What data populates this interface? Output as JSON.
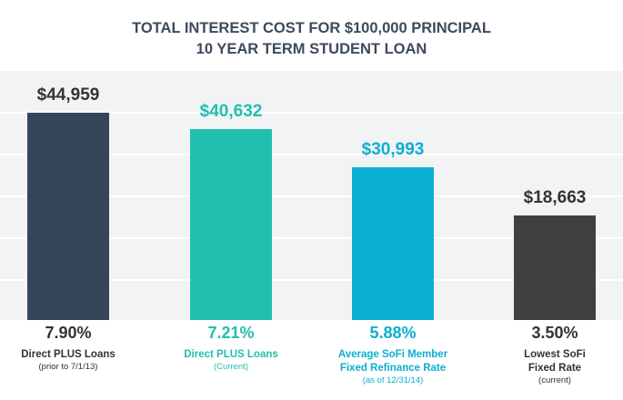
{
  "chart_data": {
    "type": "bar",
    "title_lines": [
      "TOTAL INTEREST COST FOR $100,000 PRINCIPAL",
      "10 YEAR TERM STUDENT LOAN"
    ],
    "categories": [
      {
        "rate": "7.90%",
        "name": [
          "Direct PLUS Loans"
        ],
        "note": "(prior to 7/1/13)",
        "color": "#354559",
        "text_color": "#333333"
      },
      {
        "rate": "7.21%",
        "name": [
          "Direct PLUS Loans"
        ],
        "note": "(Current)",
        "color": "#22bfae",
        "text_color": "#22bfae"
      },
      {
        "rate": "5.88%",
        "name": [
          "Average SoFi Member",
          "Fixed Refinance Rate"
        ],
        "note": "(as of 12/31/14)",
        "color": "#0daed3",
        "text_color": "#0daed3"
      },
      {
        "rate": "3.50%",
        "name": [
          "Lowest SoFi",
          "Fixed Rate"
        ],
        "note": "(current)",
        "color": "#404040",
        "text_color": "#333333"
      }
    ],
    "values": [
      44959,
      40632,
      30993,
      18663
    ],
    "value_labels": [
      "$44,959",
      "$40,632",
      "$30,993",
      "$18,663"
    ],
    "grid": true,
    "ylim": [
      0,
      50000
    ]
  }
}
